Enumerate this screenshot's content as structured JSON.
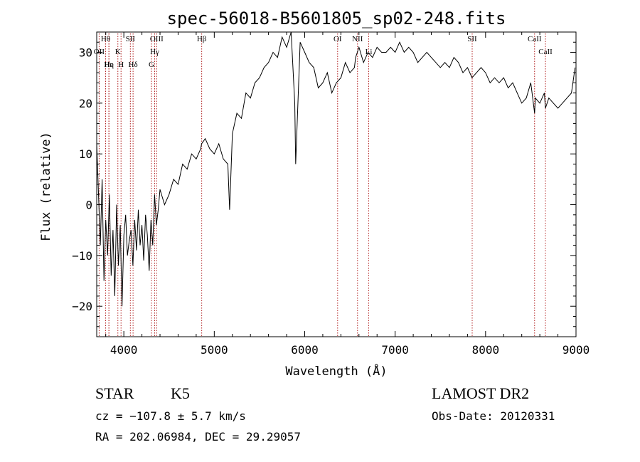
{
  "chart_data": {
    "type": "line",
    "title": "spec-56018-B5601805_sp02-248.fits",
    "xlabel": "Wavelength (Å)",
    "ylabel": "Flux (relative)",
    "xlim": [
      3700,
      9000
    ],
    "ylim": [
      -26,
      34
    ],
    "xticks": [
      4000,
      5000,
      6000,
      7000,
      8000,
      9000
    ],
    "yticks": [
      -20,
      -10,
      0,
      10,
      20,
      30
    ],
    "grid": false,
    "line_color": "#000000",
    "marker_color": "#b22222",
    "series": [
      {
        "x": [
          3700,
          3740,
          3760,
          3780,
          3800,
          3820,
          3840,
          3860,
          3880,
          3900,
          3920,
          3940,
          3960,
          3980,
          4000,
          4020,
          4040,
          4060,
          4080,
          4100,
          4120,
          4140,
          4160,
          4180,
          4200,
          4220,
          4240,
          4260,
          4280,
          4300,
          4320,
          4340,
          4360,
          4380,
          4400,
          4450,
          4500,
          4550,
          4600,
          4650,
          4700,
          4750,
          4800,
          4850,
          4860,
          4900,
          4950,
          5000,
          5050,
          5100,
          5150,
          5170,
          5200,
          5250,
          5300,
          5350,
          5400,
          5450,
          5500,
          5550,
          5600,
          5650,
          5700,
          5750,
          5800,
          5850,
          5890,
          5900,
          5950,
          6000,
          6050,
          6100,
          6150,
          6200,
          6250,
          6300,
          6350,
          6400,
          6450,
          6500,
          6550,
          6563,
          6600,
          6650,
          6700,
          6750,
          6800,
          6850,
          6900,
          6950,
          7000,
          7050,
          7100,
          7150,
          7200,
          7250,
          7300,
          7350,
          7400,
          7450,
          7500,
          7550,
          7600,
          7650,
          7700,
          7750,
          7800,
          7850,
          7900,
          7950,
          8000,
          8050,
          8100,
          8150,
          8200,
          8250,
          8300,
          8350,
          8400,
          8450,
          8500,
          8542,
          8550,
          8600,
          8650,
          8662,
          8700,
          8750,
          8800,
          8850,
          8900,
          8950,
          8990
        ],
        "y": [
          12,
          -8,
          5,
          -15,
          -3,
          -10,
          2,
          -14,
          -5,
          -18,
          0,
          -12,
          -4,
          -20,
          -6,
          -2,
          -10,
          -7,
          -5,
          -12,
          -3,
          -9,
          -1,
          -8,
          -4,
          -11,
          -2,
          -6,
          -13,
          -3,
          -8,
          2,
          -4,
          -1,
          3,
          0,
          2,
          5,
          4,
          8,
          7,
          10,
          9,
          11,
          12,
          13,
          11,
          10,
          12,
          9,
          8,
          -1,
          14,
          18,
          17,
          22,
          21,
          24,
          25,
          27,
          28,
          30,
          29,
          33,
          31,
          34,
          20,
          8,
          32,
          30,
          28,
          27,
          23,
          24,
          26,
          22,
          24,
          25,
          28,
          26,
          27,
          29,
          31,
          28,
          30,
          29,
          31,
          30,
          30,
          31,
          30,
          32,
          30,
          31,
          30,
          28,
          29,
          30,
          29,
          28,
          27,
          28,
          27,
          29,
          28,
          26,
          27,
          25,
          26,
          27,
          26,
          24,
          25,
          24,
          25,
          23,
          24,
          22,
          20,
          21,
          24,
          18,
          21,
          20,
          22,
          19,
          21,
          20,
          19,
          20,
          21,
          22,
          27
        ],
        "name": ""
      }
    ],
    "line_markers": [
      {
        "label": "Hθ",
        "x": 3798
      },
      {
        "label": "OII",
        "x": 3727
      },
      {
        "label": "He",
        "x": 3835
      },
      {
        "label": "Hη",
        "x": 3835
      },
      {
        "label": "K",
        "x": 3934
      },
      {
        "label": "H",
        "x": 3969
      },
      {
        "label": "SII",
        "x": 4072
      },
      {
        "label": "Hδ",
        "x": 4102
      },
      {
        "label": "OIII",
        "x": 4363
      },
      {
        "label": "Hγ",
        "x": 4341
      },
      {
        "label": "G",
        "x": 4305
      },
      {
        "label": "Hβ",
        "x": 4861
      },
      {
        "label": "OI",
        "x": 6364
      },
      {
        "label": "NII",
        "x": 6584
      },
      {
        "label": "Li",
        "x": 6708
      },
      {
        "label": "SII",
        "x": 7852
      },
      {
        "label": "CaII",
        "x": 8542
      },
      {
        "label": "CaII",
        "x": 8662
      }
    ]
  },
  "footer": {
    "class_label": "STAR",
    "subclass_label": "K5",
    "survey_label": "LAMOST DR2",
    "redshift_text": "cz = −107.8 ± 5.7 km/s",
    "obs_date_text": "Obs-Date: 20120331",
    "coords_text": "RA = 202.06984, DEC =  29.29057"
  }
}
